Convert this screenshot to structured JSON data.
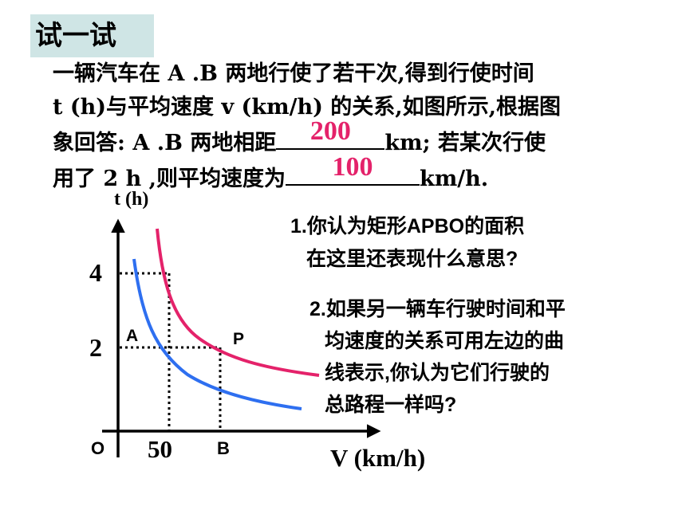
{
  "tag": "试一试",
  "problem": {
    "line1": "一辆汽车在 A .B 两地行使了若干次,得到行使时间",
    "line2": "t (h)与平均速度 v (km/h) 的关系,如图所示,根据图",
    "line3_before": "象回答: A .B 两地相距",
    "answer1": "200",
    "line3_after": "km;  若某次行使",
    "line4_before": "用了 2 h ,则平均速度为",
    "answer2": "100",
    "line4_after": "km/h."
  },
  "questions": {
    "q1_line1": "1.你认为矩形APBO的面积",
    "q1_line2": "在这里还表现什么意思?",
    "q2_line1": "2.如果另一辆车行驶时间和平",
    "q2_line2": "均速度的关系可用左边的曲",
    "q2_line3": "线表示,你认为它们行驶的",
    "q2_line4": "总路程一样吗?"
  },
  "graph": {
    "y_axis_label": "t (h)",
    "x_axis_label": "V (km/h)",
    "origin_label": "O",
    "y_tick_4": "4",
    "y_tick_2": "2",
    "x_tick_50": "50",
    "point_b": "B",
    "point_a": "A",
    "point_p": "P",
    "red_curve_color": "#e4226a",
    "blue_curve_color": "#2e6ff0"
  }
}
